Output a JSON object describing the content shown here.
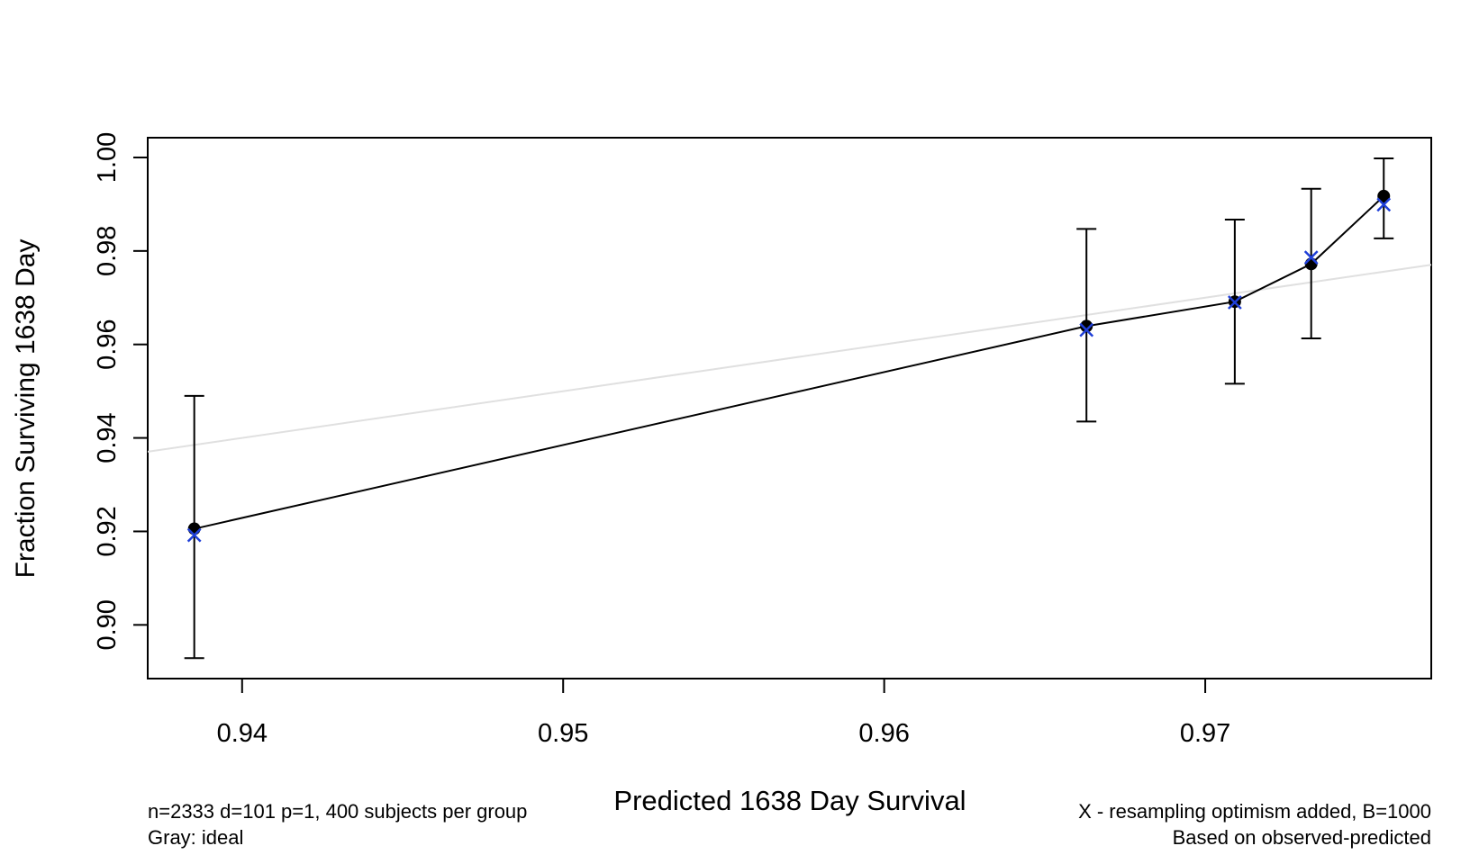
{
  "chart_data": {
    "type": "scatter",
    "x_label": "Predicted  1638 Day Survival",
    "y_label": "Fraction Surviving 1638 Day",
    "notes_left": [
      "n=2333 d=101 p=1, 400 subjects per group",
      "Gray: ideal"
    ],
    "notes_right": [
      "X - resampling optimism added, B=1000",
      "Based on observed-predicted"
    ],
    "x": [
      0.93851,
      0.9663,
      0.97092,
      0.9733,
      0.97556
    ],
    "values": [
      0.92056,
      0.96391,
      0.96915,
      0.97722,
      0.99173
    ],
    "error_low": [
      0.8929,
      0.9435,
      0.9516,
      0.9613,
      0.9827
    ],
    "error_high": [
      0.949,
      0.9847,
      0.9867,
      0.9933,
      0.9998
    ],
    "corrected_values": [
      0.9192,
      0.9631,
      0.969,
      0.9786,
      0.9899
    ],
    "color": "#000000",
    "corrected_color": "#1f3fd8",
    "ideal_color": "#e0e0e0",
    "xlim": [
      0.93706,
      0.97704
    ],
    "ylim": [
      0.88851,
      1.00423
    ],
    "xticks": [
      0.94,
      0.95,
      0.96,
      0.97
    ],
    "yticks": [
      {
        "value": 0.9,
        "label": "0.90"
      },
      0.92,
      0.94,
      0.96,
      0.98,
      {
        "value": 1.0,
        "label": "1.00"
      }
    ]
  }
}
